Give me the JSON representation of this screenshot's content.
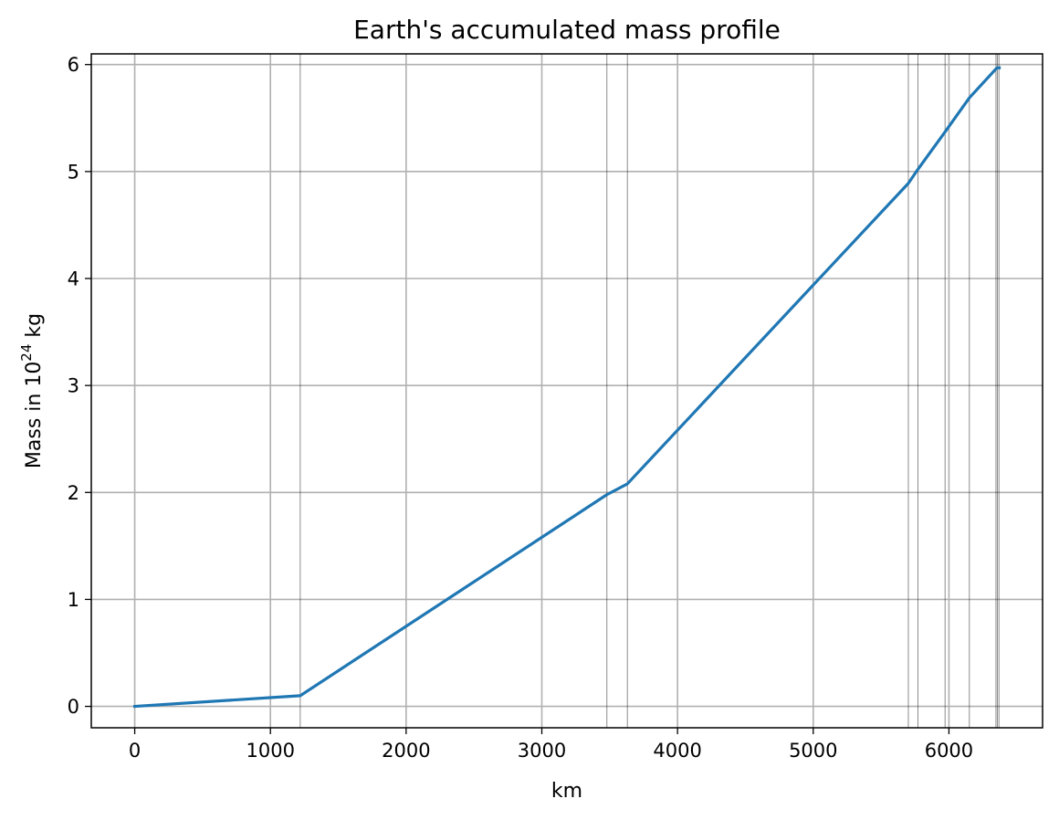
{
  "chart_data": {
    "type": "line",
    "title": "Earth's accumulated mass profile",
    "xlabel": "km",
    "ylabel": {
      "prefix": "Mass in 10",
      "superscript": "24",
      "suffix": " kg"
    },
    "xlim": [
      -320,
      6690
    ],
    "ylim": [
      -0.2,
      6.1
    ],
    "xticks": [
      0,
      1000,
      2000,
      3000,
      4000,
      5000,
      6000
    ],
    "yticks": [
      0,
      1,
      2,
      3,
      4,
      5,
      6
    ],
    "grid": true,
    "boundaries": [
      1220,
      3480,
      3630,
      5701,
      5771,
      5971,
      6151,
      6346.6,
      6356,
      6368
    ],
    "series": [
      {
        "color": "#1f77b4",
        "x": [
          0,
          1220,
          3480,
          3630,
          5701,
          5771,
          5971,
          6151,
          6346.6,
          6356,
          6368,
          6371
        ],
        "y": [
          0,
          0.1,
          1.98,
          2.08,
          4.89,
          5.02,
          5.37,
          5.69,
          5.96,
          5.97,
          5.97,
          5.97
        ]
      }
    ]
  }
}
